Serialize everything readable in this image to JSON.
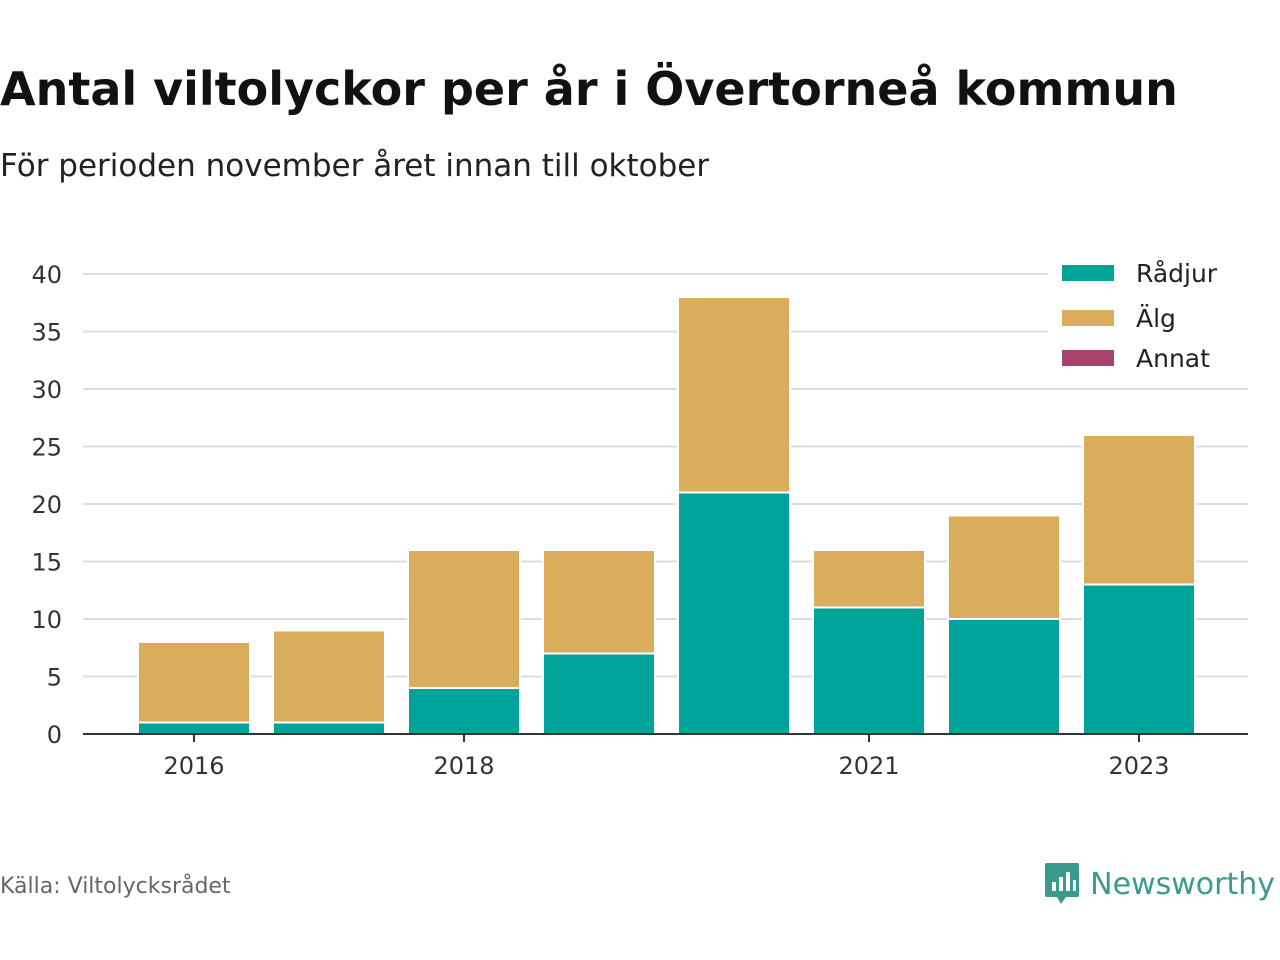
{
  "title": "Antal viltolyckor per år i Övertorneå kommun",
  "subtitle": "För perioden november året innan till oktober",
  "source": "Källa: Viltolycksrådet",
  "brand": {
    "name": "Newsworthy",
    "icon": "newsworthy-logo-icon",
    "color": "#3b9a8e"
  },
  "chart_data": {
    "type": "bar",
    "stacked": true,
    "categories": [
      "2016",
      "2017",
      "2018",
      "2019",
      "2020",
      "2021",
      "2022",
      "2023"
    ],
    "x_tick_labels": [
      "2016",
      "",
      "2018",
      "",
      "",
      "2021",
      "",
      "2023"
    ],
    "series": [
      {
        "name": "Rådjur",
        "color": "#00a39a",
        "values": [
          1,
          1,
          4,
          7,
          21,
          11,
          10,
          13
        ]
      },
      {
        "name": "Älg",
        "color": "#d9ad5b",
        "values": [
          7,
          8,
          12,
          9,
          17,
          5,
          9,
          13
        ]
      },
      {
        "name": "Annat",
        "color": "#a6426b",
        "values": [
          0,
          0,
          0,
          0,
          0,
          0,
          0,
          0
        ]
      }
    ],
    "ylim": [
      0,
      40
    ],
    "yticks": [
      0,
      5,
      10,
      15,
      20,
      25,
      30,
      35,
      40
    ],
    "xlabel": "",
    "ylabel": "",
    "grid": "horizontal",
    "legend_position": "top-right"
  }
}
